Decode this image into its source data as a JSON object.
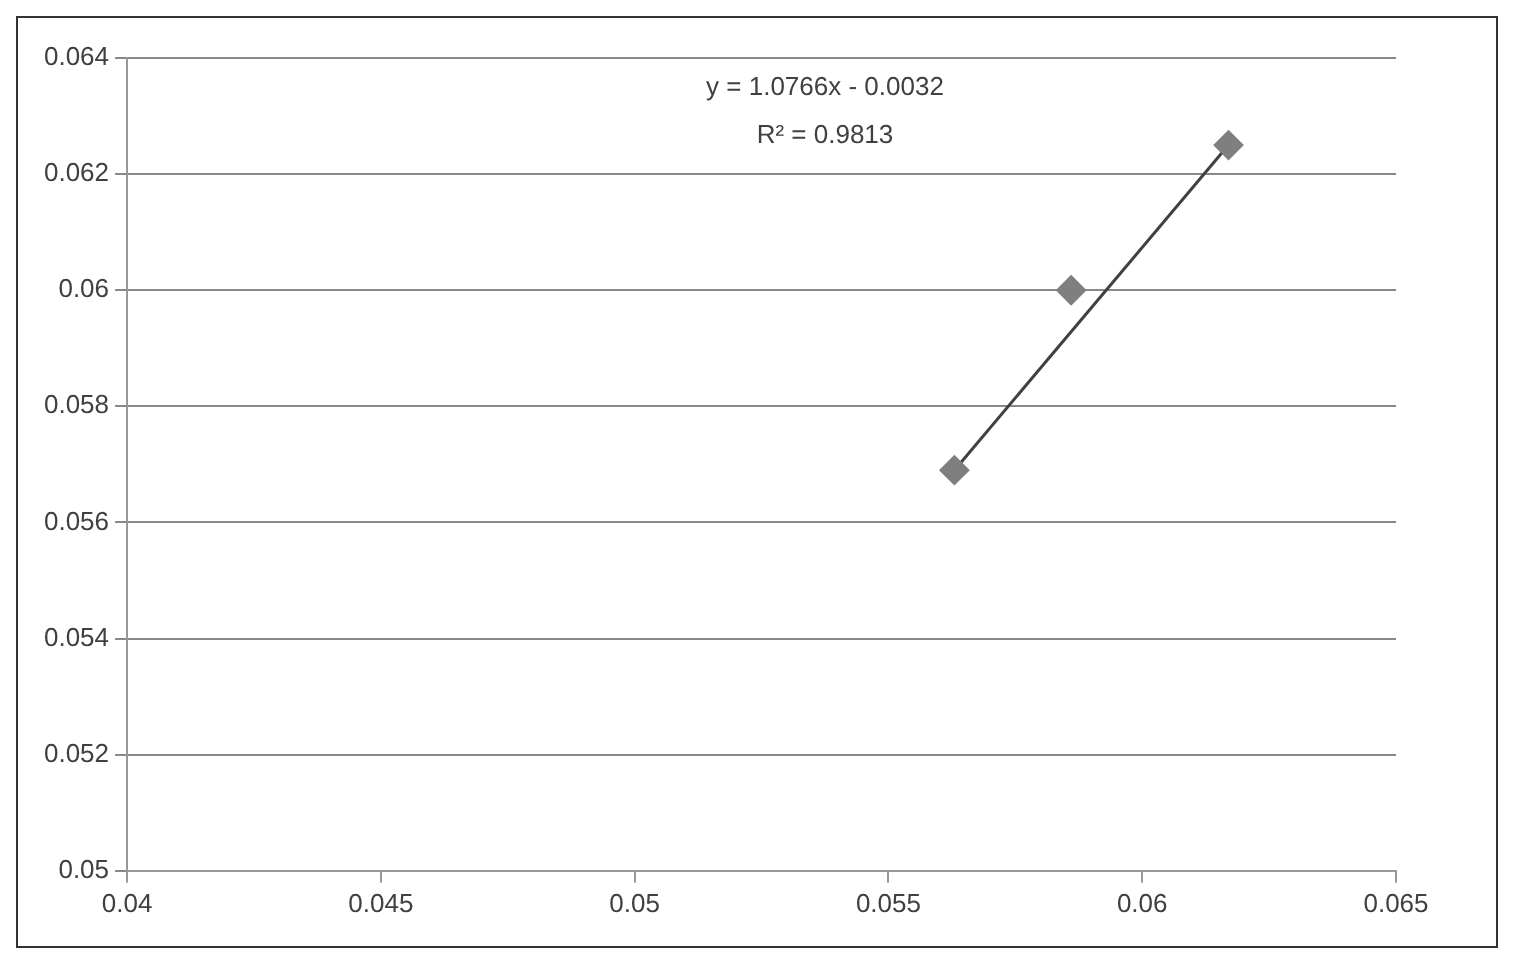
{
  "chart_data": {
    "type": "scatter",
    "grid": "y",
    "legend": false,
    "xlim": [
      0.04,
      0.065
    ],
    "xticks": [
      0.04,
      0.045,
      0.05,
      0.055,
      0.06,
      0.065
    ],
    "ylim": [
      0.05,
      0.064
    ],
    "yticks": [
      0.05,
      0.052,
      0.054,
      0.056,
      0.058,
      0.06,
      0.062,
      0.064
    ],
    "annotations": [
      "y = 1.0766x - 0.0032",
      "R² = 0.9813"
    ],
    "series": [
      {
        "type": "scatter",
        "marker": "diamond",
        "color": "#7f7f7f",
        "x": [
          0.0563,
          0.0586,
          0.0617
        ],
        "values": [
          0.0569,
          0.06,
          0.0625
        ]
      },
      {
        "type": "line",
        "marker": "none",
        "color": "#404040",
        "x": [
          0.0563,
          0.0617
        ],
        "values": [
          0.0569,
          0.0625
        ]
      }
    ]
  }
}
